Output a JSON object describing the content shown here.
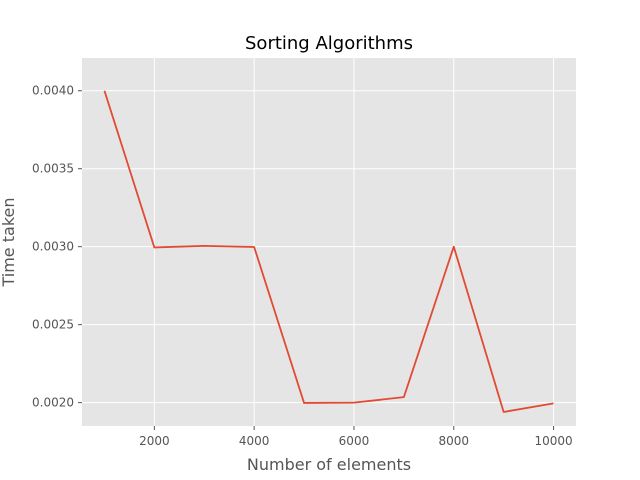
{
  "chart_data": {
    "type": "line",
    "title": "Sorting Algorithms",
    "xlabel": "Number of elements",
    "ylabel": "Time taken",
    "x": [
      1000,
      2000,
      3000,
      4000,
      5000,
      6000,
      7000,
      8000,
      9000,
      10000
    ],
    "series": [
      {
        "values": [
          0.004,
          0.002995,
          0.003005,
          0.002998,
          0.001998,
          0.002,
          0.002035,
          0.003,
          0.00194,
          0.001995
        ]
      }
    ],
    "x_ticks": [
      2000,
      4000,
      6000,
      8000,
      10000
    ],
    "y_ticks": [
      "0.0020",
      "0.0025",
      "0.0030",
      "0.0035",
      "0.0040"
    ],
    "xlim": [
      550,
      10450
    ],
    "ylim": [
      0.00185,
      0.00421
    ],
    "grid": true,
    "colors": {
      "background": "#e5e5e5",
      "grid": "#ffffff",
      "line": "#e24a33"
    }
  }
}
